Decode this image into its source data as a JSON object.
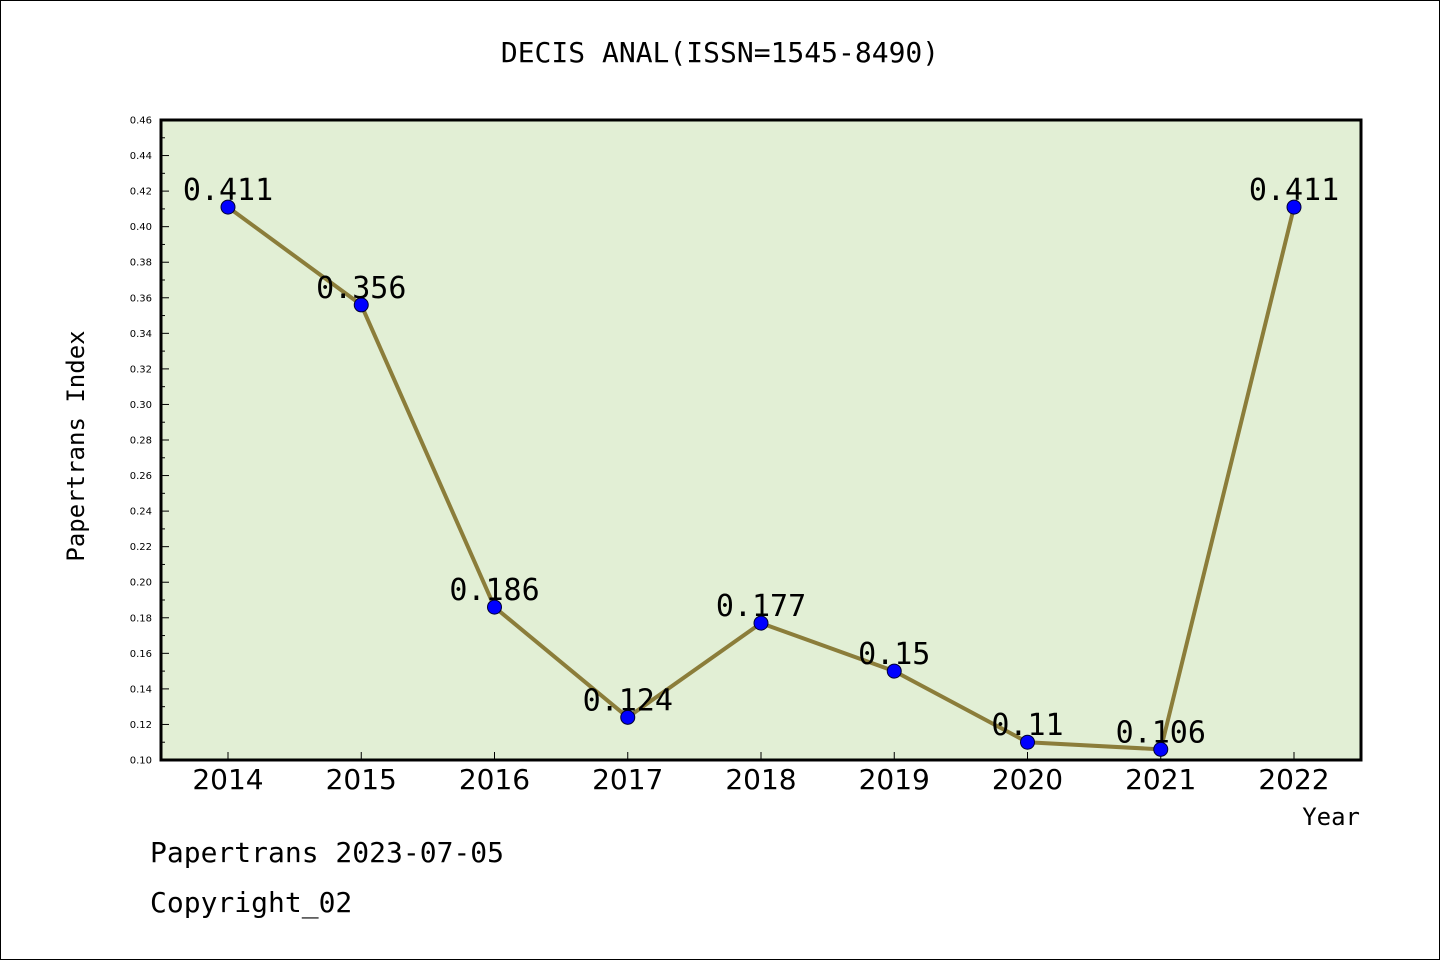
{
  "chart_data": {
    "type": "line",
    "title": "DECIS ANAL(ISSN=1545-8490)",
    "xlabel": "Year",
    "ylabel": "Papertrans Index",
    "categories": [
      "2014",
      "2015",
      "2016",
      "2017",
      "2018",
      "2019",
      "2020",
      "2021",
      "2022"
    ],
    "series": [
      {
        "values": [
          0.411,
          0.356,
          0.186,
          0.124,
          0.177,
          0.15,
          0.11,
          0.106,
          0.411
        ],
        "labels": [
          "0.411",
          "0.356",
          "0.186",
          "0.124",
          "0.177",
          "0.15",
          "0.11",
          "0.106",
          "0.411"
        ]
      }
    ],
    "ylim": [
      0.1,
      0.46
    ],
    "yticks": [
      "0.10",
      "0.12",
      "0.14",
      "0.16",
      "0.18",
      "0.20",
      "0.22",
      "0.24",
      "0.26",
      "0.28",
      "0.30",
      "0.32",
      "0.34",
      "0.36",
      "0.38",
      "0.40",
      "0.42",
      "0.44",
      "0.46"
    ],
    "grid": false,
    "colors": {
      "plot_background": "#e2efd5",
      "line": "#8b7d3a",
      "marker": "#0000ff"
    }
  },
  "footer": {
    "date_line": "Papertrans 2023-07-05",
    "copyright": "Copyright_02"
  }
}
